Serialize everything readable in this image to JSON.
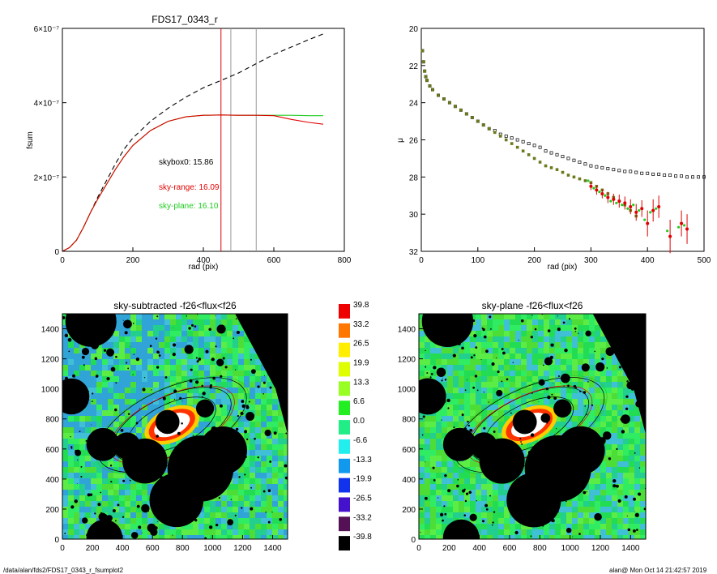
{
  "footer": {
    "path": "/data/alan/fds2/FDS17_0343_r_fsumplot2",
    "stamp": "alan@  Mon Oct 14 21:42:57 2019"
  },
  "chart_data": [
    {
      "type": "line",
      "title": "FDS17_0343_r",
      "xlabel": "rad (pix)",
      "ylabel": "fsum",
      "xlim": [
        0,
        800
      ],
      "ylim": [
        0,
        6e-07
      ],
      "xticks": [
        "0",
        "200",
        "400",
        "600",
        "800"
      ],
      "yticks": [
        "0",
        "2×10⁻⁷",
        "4×10⁻⁷",
        "6×10⁻⁷"
      ],
      "vlines": [
        {
          "x": 450,
          "color": "#e00000"
        },
        {
          "x": 478,
          "color": "#999999"
        },
        {
          "x": 550,
          "color": "#999999"
        }
      ],
      "annotations": [
        {
          "text": "skybox0: 15.86",
          "color": "#000000"
        },
        {
          "text": "sky-range: 16.09",
          "color": "#e00000"
        },
        {
          "text": "sky-plane: 16.10",
          "color": "#22cc22"
        }
      ],
      "series": [
        {
          "style": "dashed",
          "color": "#000000",
          "x": [
            0,
            20,
            40,
            60,
            80,
            100,
            125,
            150,
            175,
            200,
            250,
            300,
            350,
            400,
            450,
            500,
            550,
            600,
            650,
            700,
            740
          ],
          "y": [
            0,
            1e-08,
            3e-08,
            6.5e-08,
            1.05e-07,
            1.45e-07,
            1.9e-07,
            2.35e-07,
            2.75e-07,
            3.05e-07,
            3.5e-07,
            3.85e-07,
            4.15e-07,
            4.4e-07,
            4.6e-07,
            4.8e-07,
            5.05e-07,
            5.3e-07,
            5.5e-07,
            5.7e-07,
            5.85e-07
          ]
        },
        {
          "style": "solid",
          "color": "#22cc22",
          "x": [
            0,
            20,
            40,
            60,
            80,
            100,
            125,
            150,
            175,
            200,
            250,
            300,
            350,
            400,
            450,
            500,
            550,
            600,
            650,
            700,
            740
          ],
          "y": [
            0,
            1e-08,
            3e-08,
            6.5e-08,
            1.05e-07,
            1.4e-07,
            1.8e-07,
            2.2e-07,
            2.55e-07,
            2.85e-07,
            3.25e-07,
            3.5e-07,
            3.62e-07,
            3.66e-07,
            3.67e-07,
            3.66e-07,
            3.66e-07,
            3.66e-07,
            3.66e-07,
            3.65e-07,
            3.65e-07
          ]
        },
        {
          "style": "solid",
          "color": "#e00000",
          "x": [
            0,
            20,
            40,
            60,
            80,
            100,
            125,
            150,
            175,
            200,
            250,
            300,
            350,
            400,
            450,
            500,
            550,
            600,
            650,
            700,
            740
          ],
          "y": [
            0,
            1e-08,
            3e-08,
            6.5e-08,
            1.05e-07,
            1.4e-07,
            1.8e-07,
            2.2e-07,
            2.55e-07,
            2.85e-07,
            3.25e-07,
            3.5e-07,
            3.62e-07,
            3.66e-07,
            3.67e-07,
            3.66e-07,
            3.66e-07,
            3.65e-07,
            3.55e-07,
            3.47e-07,
            3.42e-07
          ]
        }
      ]
    },
    {
      "type": "scatter",
      "xlabel": "rad (pix)",
      "ylabel": "μ",
      "xlim": [
        0,
        500
      ],
      "ylim": [
        32,
        20
      ],
      "xticks": [
        "0",
        "100",
        "200",
        "300",
        "400",
        "500"
      ],
      "yticks": [
        "20",
        "22",
        "24",
        "26",
        "28",
        "30",
        "32"
      ],
      "series": [
        {
          "color": "#000000",
          "marker": "open-square",
          "x": [
            2,
            4,
            6,
            8,
            10,
            15,
            20,
            30,
            40,
            50,
            60,
            70,
            80,
            90,
            100,
            110,
            120,
            130,
            140,
            150,
            160,
            170,
            180,
            190,
            200,
            210,
            220,
            230,
            240,
            250,
            260,
            270,
            280,
            290,
            300,
            310,
            320,
            330,
            340,
            350,
            360,
            370,
            380,
            390,
            400,
            410,
            420,
            430,
            440,
            450,
            460,
            470,
            480,
            490,
            500
          ],
          "y": [
            21.2,
            21.8,
            22.3,
            22.6,
            22.8,
            23.1,
            23.3,
            23.6,
            23.8,
            24.0,
            24.2,
            24.4,
            24.6,
            24.8,
            25.0,
            25.2,
            25.4,
            25.5,
            25.7,
            25.8,
            25.9,
            26.0,
            26.1,
            26.2,
            26.3,
            26.4,
            26.6,
            26.7,
            26.8,
            26.9,
            27.0,
            27.1,
            27.2,
            27.3,
            27.4,
            27.45,
            27.5,
            27.55,
            27.6,
            27.65,
            27.7,
            27.7,
            27.75,
            27.8,
            27.8,
            27.85,
            27.85,
            27.9,
            27.9,
            27.95,
            27.95,
            28.0,
            28.0,
            28.0,
            28.0
          ]
        },
        {
          "color": "#6b7a1a",
          "marker": "square",
          "x": [
            2,
            4,
            6,
            8,
            10,
            15,
            20,
            30,
            40,
            50,
            60,
            70,
            80,
            90,
            100,
            110,
            120,
            130,
            140,
            150,
            160,
            170,
            180,
            190,
            200,
            210,
            220,
            230,
            240,
            250,
            260,
            270,
            280,
            290,
            300,
            310,
            320,
            330,
            340,
            350,
            360,
            370,
            380
          ],
          "y": [
            21.2,
            21.8,
            22.3,
            22.6,
            22.8,
            23.1,
            23.3,
            23.6,
            23.8,
            24.0,
            24.2,
            24.4,
            24.6,
            24.8,
            25.0,
            25.2,
            25.4,
            25.6,
            25.8,
            26.0,
            26.2,
            26.4,
            26.6,
            26.8,
            27.0,
            27.2,
            27.4,
            27.5,
            27.6,
            27.75,
            27.9,
            28.0,
            28.1,
            28.2,
            28.3,
            28.5,
            28.7,
            28.9,
            29.1,
            29.3,
            29.5,
            29.8,
            30.1
          ]
        },
        {
          "color": "#e00000",
          "marker": "dot-errorbar",
          "x": [
            300,
            310,
            320,
            330,
            340,
            350,
            360,
            370,
            380,
            390,
            400,
            410,
            420,
            440,
            460,
            470
          ],
          "y": [
            28.5,
            28.7,
            28.9,
            29.1,
            29.2,
            29.3,
            29.4,
            29.6,
            29.9,
            29.7,
            30.5,
            29.8,
            29.6,
            31.2,
            30.5,
            30.8
          ],
          "err": [
            0.2,
            0.25,
            0.25,
            0.3,
            0.3,
            0.35,
            0.35,
            0.4,
            0.45,
            0.45,
            0.7,
            0.6,
            0.6,
            0.9,
            0.7,
            0.8
          ]
        },
        {
          "color": "#22cc22",
          "marker": "dot",
          "x": [
            295,
            305,
            315,
            325,
            335,
            345,
            355,
            365,
            375,
            385,
            395,
            405,
            415,
            435,
            455,
            465
          ],
          "y": [
            28.2,
            28.6,
            28.8,
            29.0,
            29.3,
            29.4,
            29.5,
            29.7,
            29.5,
            29.8,
            30.3,
            29.9,
            29.7,
            30.9,
            30.7,
            30.6
          ]
        }
      ]
    },
    {
      "type": "heatmap",
      "title": "sky-subtracted -f26<flux<f26",
      "xlim": [
        0,
        1500
      ],
      "ylim": [
        0,
        1500
      ],
      "xticks": [
        "0",
        "200",
        "400",
        "600",
        "800",
        "1000",
        "1200",
        "1400"
      ],
      "yticks": [
        "0",
        "200",
        "400",
        "600",
        "800",
        "1000",
        "1200",
        "1400"
      ]
    },
    {
      "type": "heatmap",
      "title": "sky-plane -f26<flux<f26",
      "xlim": [
        0,
        1500
      ],
      "ylim": [
        0,
        1500
      ],
      "xticks": [
        "0",
        "200",
        "400",
        "600",
        "800",
        "1000",
        "1200",
        "1400"
      ],
      "yticks": [
        "0",
        "200",
        "400",
        "600",
        "800",
        "1000",
        "1200",
        "1400"
      ]
    }
  ],
  "colorbar": {
    "levels": [
      {
        "label": "39.8",
        "color": "#ee0000"
      },
      {
        "label": "33.2",
        "color": "#ff7700"
      },
      {
        "label": "26.5",
        "color": "#ffee00"
      },
      {
        "label": "19.9",
        "color": "#ddff00"
      },
      {
        "label": "13.3",
        "color": "#99ff22"
      },
      {
        "label": "6.6",
        "color": "#22ee22"
      },
      {
        "label": "0.0",
        "color": "#22ee88"
      },
      {
        "label": "-6.6",
        "color": "#22eeee"
      },
      {
        "label": "-13.3",
        "color": "#1199ee"
      },
      {
        "label": "-19.9",
        "color": "#1133ee"
      },
      {
        "label": "-26.5",
        "color": "#4411cc"
      },
      {
        "label": "-33.2",
        "color": "#551155"
      },
      {
        "label": "-39.8",
        "color": "#000000"
      }
    ]
  },
  "colors": {
    "bg_field_a": "#22dd55",
    "bg_field_b": "#44bbee",
    "galaxy_core": "#ffffff",
    "galaxy_ring": "#ff3300",
    "mask": "#000000"
  }
}
